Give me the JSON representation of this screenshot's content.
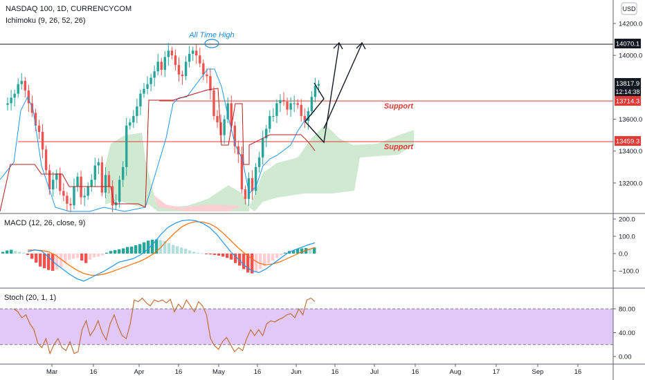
{
  "header": {
    "symbol": "NASDAQ 100, 1D, CURRENCYCOM",
    "indicator": "Ichimoku (9, 26, 52, 26)",
    "currency": "USD"
  },
  "annotations": {
    "ath": "All Time High",
    "support_upper": "Support",
    "support_lower": "Support"
  },
  "price_labels": {
    "ath_line": "14070.1",
    "current_price": "13817.9",
    "countdown": "12:14:38",
    "support_upper": "13714.3",
    "support_lower": "13459.3"
  },
  "colors": {
    "up": "#26a69a",
    "down": "#ef5350",
    "kumo_bull": "#c8e6c9",
    "kumo_bear": "#ffcdd2",
    "tenkan": "#2196f3",
    "kijun": "#b71c1c",
    "macd_line": "#2196f3",
    "signal_line": "#ff6d00",
    "stoch_line": "#c0662f",
    "stoch_band": "#e1c8f7",
    "support_line": "#e53935"
  },
  "macd_label": "MACD (12, 26, close, 9)",
  "stoch_label": "Stoch (20, 1, 1)",
  "x_axis_labels": [
    "Mar",
    "16",
    "Apr",
    "16",
    "May",
    "16",
    "Jun",
    "16",
    "Jul",
    "16",
    "Aug",
    "17",
    "Sep",
    "16"
  ],
  "chart_data": [
    {
      "type": "candlestick",
      "title": "NASDAQ 100, 1D, CURRENCYCOM",
      "y_ticks": [
        13200,
        13400,
        13600,
        14000,
        14200
      ],
      "y_tick_labels": [
        "13200.0",
        "13400.0",
        "13600.0",
        "14000.0",
        "14200.0"
      ],
      "ylim": [
        13060,
        14300
      ],
      "horizontal_levels": [
        14070.1,
        13714.3,
        13459.3
      ],
      "projection_path_1": [
        [
          13800,
          13450
        ],
        [
          13450,
          14070
        ]
      ],
      "projection_path_2": [
        [
          13450,
          14070
        ]
      ],
      "ohlc_close_path": [
        13690,
        13700,
        13735,
        13760,
        13820,
        13840,
        13780,
        13700,
        13640,
        13560,
        13520,
        13410,
        13280,
        13160,
        13220,
        13260,
        13150,
        13120,
        13070,
        13060,
        13180,
        13240,
        13110,
        13120,
        13180,
        13220,
        13310,
        13330,
        13140,
        13250,
        13180,
        13060,
        13080,
        13220,
        13300,
        13560,
        13580,
        13620,
        13680,
        13760,
        13790,
        13820,
        13860,
        13900,
        13960,
        13910,
        13990,
        14030,
        14000,
        13940,
        13880,
        13870,
        13960,
        14010,
        14030,
        14000,
        13950,
        13880,
        13870,
        13780,
        13620,
        13580,
        13500,
        13600,
        13700,
        13560,
        13430,
        13380,
        13160,
        13100,
        13230,
        13150,
        13300,
        13360,
        13480,
        13540,
        13620,
        13620,
        13700,
        13720,
        13710,
        13660,
        13700,
        13700,
        13690,
        13620,
        13590,
        13650,
        13740,
        13810,
        13820
      ],
      "legend": "Ichimoku (9, 26, 52, 26)"
    },
    {
      "type": "bar+line",
      "title": "MACD (12, 26, close, 9)",
      "y_ticks": [
        200,
        100,
        0,
        -100
      ],
      "y_tick_labels": [
        "200.0",
        "100.0",
        "0.0",
        "−100.0"
      ],
      "ylim": [
        -200,
        220
      ],
      "histogram": [
        10,
        18,
        22,
        15,
        10,
        5,
        -8,
        -30,
        -52,
        -75,
        -85,
        -95,
        -100,
        -92,
        -80,
        -55,
        -35,
        -30,
        -25,
        -40,
        -55,
        -35,
        -22,
        -18,
        -10,
        5,
        15,
        20,
        25,
        30,
        38,
        40,
        48,
        55,
        65,
        75,
        80,
        82,
        78,
        72,
        60,
        50,
        42,
        35,
        28,
        18,
        10,
        5,
        2,
        -3,
        -5,
        -8,
        -12,
        -18,
        -25,
        -35,
        -55,
        -70,
        -90,
        -110,
        -115,
        -108,
        -90,
        -72,
        -55,
        -40,
        -25,
        -10,
        5,
        15,
        18,
        28,
        30,
        32,
        30,
        35
      ],
      "macd": [
        10,
        22,
        15,
        -20,
        -60,
        -90,
        -120,
        -145,
        -160,
        -140,
        -120,
        -100,
        -75,
        -50,
        -40,
        -30,
        -10,
        20,
        60,
        110,
        150,
        175,
        190,
        195,
        190,
        175,
        150,
        110,
        60,
        10,
        -30,
        -70,
        -100,
        -110,
        -90,
        -60,
        -30,
        0,
        20,
        35,
        50,
        62
      ],
      "signal": [
        20,
        20,
        18,
        10,
        -10,
        -40,
        -70,
        -95,
        -115,
        -125,
        -125,
        -118,
        -105,
        -90,
        -75,
        -60,
        -45,
        -25,
        0,
        35,
        80,
        120,
        155,
        175,
        185,
        183,
        172,
        150,
        115,
        75,
        35,
        0,
        -30,
        -55,
        -65,
        -60,
        -48,
        -30,
        -12,
        8,
        22,
        35
      ]
    },
    {
      "type": "line",
      "title": "Stoch (20, 1, 1)",
      "y_ticks": [
        80,
        40,
        0
      ],
      "y_tick_labels": [
        "80.00",
        "40.00",
        "0.00"
      ],
      "band": [
        20,
        80
      ],
      "ylim": [
        -10,
        100
      ],
      "values": [
        80,
        75,
        65,
        70,
        55,
        45,
        22,
        15,
        30,
        5,
        20,
        30,
        15,
        10,
        25,
        5,
        8,
        45,
        60,
        35,
        45,
        60,
        40,
        28,
        55,
        70,
        50,
        35,
        30,
        55,
        95,
        92,
        98,
        90,
        85,
        95,
        92,
        95,
        90,
        96,
        75,
        88,
        80,
        95,
        85,
        75,
        92,
        85,
        70,
        30,
        18,
        12,
        25,
        32,
        20,
        8,
        15,
        10,
        30,
        45,
        35,
        45,
        35,
        55,
        60,
        58,
        62,
        65,
        70,
        72,
        65,
        80,
        70,
        95,
        98,
        92
      ]
    }
  ]
}
